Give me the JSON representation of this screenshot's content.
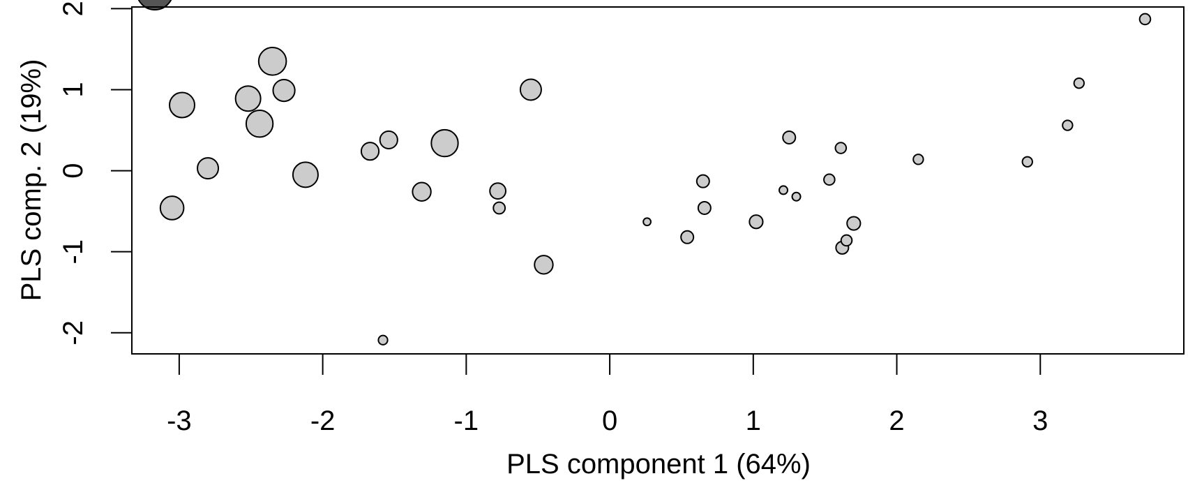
{
  "chart_data": {
    "type": "scatter",
    "title": "",
    "xlabel": "PLS component 1 (64%)",
    "ylabel": "PLS comp. 2 (19%)",
    "xlim": [
      -3.33,
      4.0
    ],
    "ylim": [
      -2.26,
      2.02
    ],
    "xticks": [
      -3,
      -2,
      -1,
      0,
      1,
      2,
      3
    ],
    "yticks": [
      -2,
      -1,
      0,
      1,
      2
    ],
    "grid": false,
    "legend": "none",
    "colors": {
      "fill": "#cccccc",
      "stroke": "#000000"
    },
    "point_size_unit": "relative (1 = smallest marker)",
    "points": [
      {
        "x": -3.05,
        "y": -0.46,
        "size": 2.8
      },
      {
        "x": -2.98,
        "y": 0.81,
        "size": 3.0
      },
      {
        "x": -2.8,
        "y": 0.03,
        "size": 2.5
      },
      {
        "x": -2.52,
        "y": 0.89,
        "size": 3.0
      },
      {
        "x": -2.44,
        "y": 0.58,
        "size": 3.2
      },
      {
        "x": -2.35,
        "y": 1.35,
        "size": 3.3
      },
      {
        "x": -2.27,
        "y": 0.99,
        "size": 2.6
      },
      {
        "x": -2.12,
        "y": -0.05,
        "size": 3.0
      },
      {
        "x": -1.67,
        "y": 0.24,
        "size": 2.1
      },
      {
        "x": -1.54,
        "y": 0.38,
        "size": 2.1
      },
      {
        "x": -1.31,
        "y": -0.26,
        "size": 2.2
      },
      {
        "x": -1.15,
        "y": 0.34,
        "size": 3.2
      },
      {
        "x": -0.78,
        "y": -0.25,
        "size": 1.9
      },
      {
        "x": -0.77,
        "y": -0.46,
        "size": 1.4
      },
      {
        "x": -0.55,
        "y": 1.0,
        "size": 2.5
      },
      {
        "x": -0.46,
        "y": -1.16,
        "size": 2.2
      },
      {
        "x": -1.58,
        "y": -2.09,
        "size": 1.1
      },
      {
        "x": 0.26,
        "y": -0.63,
        "size": 0.9
      },
      {
        "x": 0.54,
        "y": -0.82,
        "size": 1.5
      },
      {
        "x": 0.65,
        "y": -0.13,
        "size": 1.5
      },
      {
        "x": 0.66,
        "y": -0.46,
        "size": 1.5
      },
      {
        "x": 1.02,
        "y": -0.63,
        "size": 1.6
      },
      {
        "x": 1.21,
        "y": -0.24,
        "size": 1.0
      },
      {
        "x": 1.25,
        "y": 0.41,
        "size": 1.5
      },
      {
        "x": 1.3,
        "y": -0.32,
        "size": 1.0
      },
      {
        "x": 1.53,
        "y": -0.11,
        "size": 1.3
      },
      {
        "x": 1.61,
        "y": 0.28,
        "size": 1.3
      },
      {
        "x": 1.62,
        "y": -0.95,
        "size": 1.5
      },
      {
        "x": 1.65,
        "y": -0.86,
        "size": 1.3
      },
      {
        "x": 1.7,
        "y": -0.65,
        "size": 1.6
      },
      {
        "x": 2.15,
        "y": 0.14,
        "size": 1.2
      },
      {
        "x": 2.91,
        "y": 0.11,
        "size": 1.2
      },
      {
        "x": 3.19,
        "y": 0.56,
        "size": 1.2
      },
      {
        "x": 3.27,
        "y": 1.08,
        "size": 1.2
      },
      {
        "x": 3.73,
        "y": 1.87,
        "size": 1.3
      }
    ]
  }
}
